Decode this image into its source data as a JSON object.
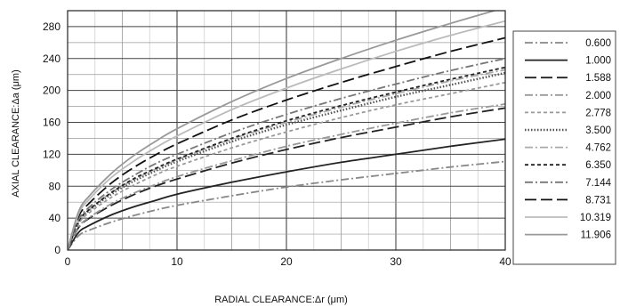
{
  "chart_data": {
    "type": "line",
    "xlabel": "RADIAL CLEARANCE:Δr (μm)",
    "ylabel": "AXIAL CLEARANCE:Δa (μm)",
    "xlim": [
      0,
      40
    ],
    "ylim": [
      0,
      300
    ],
    "x_ticks": [
      "0",
      "10",
      "20",
      "30",
      "40"
    ],
    "y_ticks": [
      "0",
      "40",
      "80",
      "120",
      "160",
      "200",
      "240",
      "280"
    ],
    "grid": true,
    "legend_position": "right",
    "x": [
      0,
      1,
      2,
      4,
      6,
      8,
      10,
      15,
      20,
      25,
      30,
      35,
      40
    ],
    "series": [
      {
        "name": "0.600",
        "style": "dash-dot",
        "color": "#888888",
        "values": [
          0,
          18,
          25,
          35,
          43,
          50,
          56,
          68,
          79,
          88,
          96,
          104,
          111
        ]
      },
      {
        "name": "1.000",
        "style": "solid",
        "color": "#222222",
        "values": [
          0,
          22,
          31,
          44,
          54,
          62,
          70,
          85,
          98,
          110,
          120,
          130,
          139
        ]
      },
      {
        "name": "1.588",
        "style": "long-dash",
        "color": "#222222",
        "values": [
          0,
          28,
          40,
          56,
          69,
          80,
          89,
          109,
          126,
          141,
          154,
          167,
          178
        ]
      },
      {
        "name": "2.000",
        "style": "dash-dot",
        "color": "#999999",
        "values": [
          0,
          29,
          41,
          58,
          71,
          82,
          92,
          112,
          130,
          145,
          159,
          172,
          183
        ]
      },
      {
        "name": "2.778",
        "style": "short-dash",
        "color": "#999999",
        "values": [
          0,
          33,
          47,
          66,
          81,
          94,
          105,
          128,
          148,
          166,
          182,
          196,
          210
        ]
      },
      {
        "name": "3.500",
        "style": "dotted",
        "color": "#555555",
        "values": [
          0,
          35,
          50,
          70,
          86,
          99,
          111,
          136,
          157,
          175,
          192,
          207,
          222
        ]
      },
      {
        "name": "4.762",
        "style": "dash-dot",
        "color": "#aaaaaa",
        "values": [
          0,
          36,
          51,
          72,
          88,
          101,
          113,
          139,
          160,
          179,
          196,
          212,
          226
        ]
      },
      {
        "name": "6.350",
        "style": "short-dash",
        "color": "#222222",
        "values": [
          0,
          36,
          51,
          72,
          89,
          102,
          114,
          140,
          162,
          181,
          198,
          214,
          229
        ]
      },
      {
        "name": "7.144",
        "style": "dash-dot",
        "color": "#777777",
        "values": [
          0,
          38,
          54,
          76,
          93,
          108,
          120,
          147,
          170,
          190,
          208,
          225,
          240
        ]
      },
      {
        "name": "8.731",
        "style": "long-dash",
        "color": "#111111",
        "values": [
          0,
          42,
          59,
          84,
          103,
          119,
          133,
          163,
          188,
          210,
          230,
          249,
          266
        ]
      },
      {
        "name": "10.319",
        "style": "solid",
        "color": "#bbbbbb",
        "values": [
          0,
          45,
          64,
          91,
          111,
          128,
          143,
          176,
          203,
          227,
          249,
          269,
          287
        ]
      },
      {
        "name": "11.906",
        "style": "solid",
        "color": "#999999",
        "values": [
          0,
          48,
          68,
          96,
          118,
          136,
          152,
          186,
          215,
          240,
          263,
          284,
          304
        ]
      }
    ]
  }
}
